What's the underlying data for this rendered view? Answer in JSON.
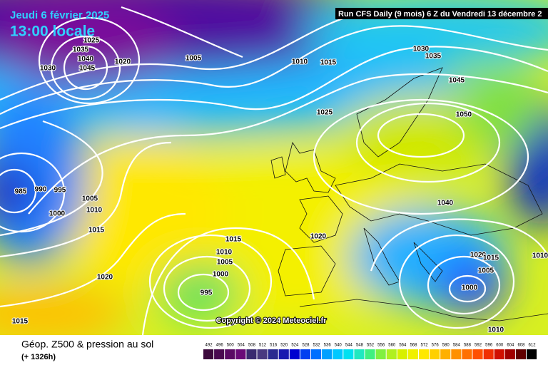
{
  "header": {
    "date": "Jeudi 6 février 2025",
    "time": "13:00 locale",
    "run": "Run CFS Daily (9 mois) 6 Z du Vendredi 13 décembre 2"
  },
  "copyright": "Copyright © 2024 Meteociel.fr",
  "footer": {
    "title": "Géop. Z500 & pression au sol",
    "lead": "(+ 1326h)"
  },
  "isobars": {
    "labels": [
      1025,
      1035,
      1040,
      1045,
      1030,
      1020,
      1005,
      1010,
      1015,
      1030,
      1035,
      1045,
      1025,
      1050,
      985,
      990,
      995,
      1005,
      1010,
      1000,
      1015,
      1040,
      1015,
      1020,
      1010,
      1005,
      1000,
      1020,
      995,
      1015,
      1020,
      1015,
      1005,
      1000,
      1010,
      1010
    ]
  },
  "scale": {
    "ticks": [
      492,
      496,
      500,
      504,
      508,
      512,
      516,
      520,
      524,
      528,
      532,
      536,
      540,
      544,
      548,
      552,
      556,
      560,
      564,
      568,
      572,
      576,
      580,
      584,
      588,
      592,
      596,
      600,
      604,
      608,
      612
    ]
  }
}
